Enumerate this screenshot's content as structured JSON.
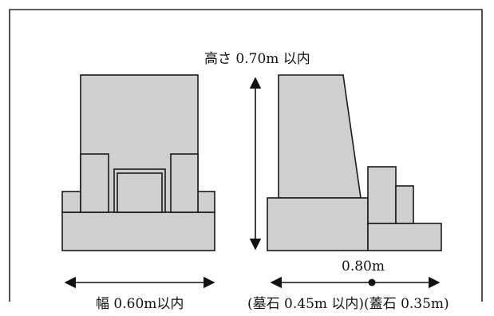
{
  "labels": {
    "height_limit": "高さ 0.70m 以内",
    "width_limit": "幅 0.60m以内",
    "depth_total": "0.80m",
    "depth_breakdown": "(墓石 0.45m 以内)(蓋石 0.35m)"
  },
  "colors": {
    "stone_fill": "#cfcfcf",
    "outline": "#1a1a1a",
    "background": "#ffffff"
  }
}
